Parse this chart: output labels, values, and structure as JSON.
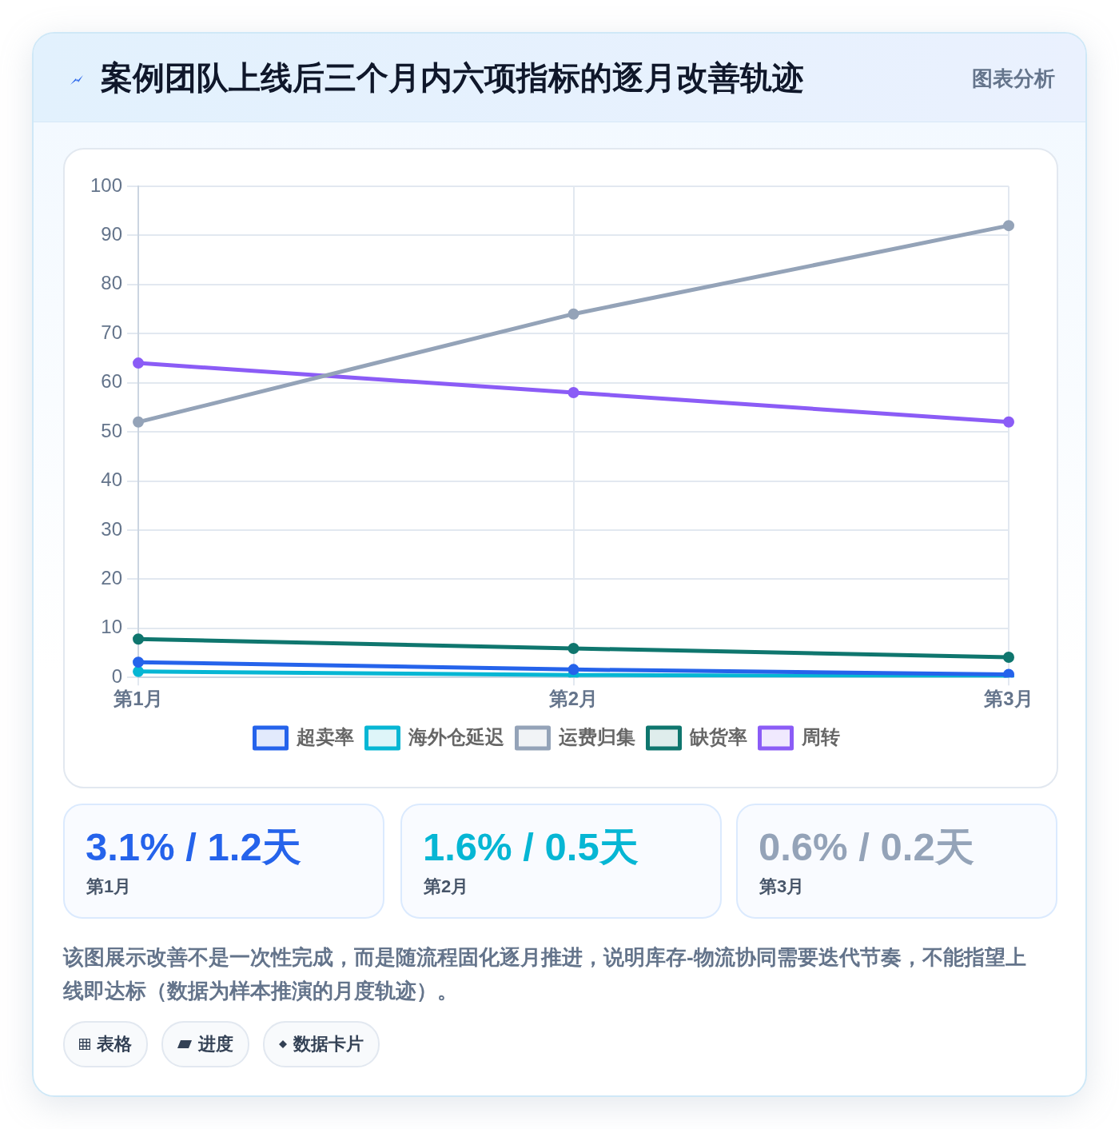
{
  "chart_data": {
    "type": "line",
    "title": "案例团队上线后三个月内六项指标的逐月改善轨迹",
    "categories": [
      "第1月",
      "第2月",
      "第3月"
    ],
    "series": [
      {
        "name": "超卖率",
        "color": "#2563eb",
        "values": [
          3.1,
          1.6,
          0.6
        ]
      },
      {
        "name": "海外仓延迟",
        "color": "#06b6d4",
        "values": [
          1.2,
          0.5,
          0.2
        ]
      },
      {
        "name": "运费归集",
        "color": "#94a3b8",
        "values": [
          52,
          74,
          92
        ]
      },
      {
        "name": "缺货率",
        "color": "#0f766e",
        "values": [
          7.8,
          5.9,
          4.1
        ]
      },
      {
        "name": "周转",
        "color": "#8b5cf6",
        "values": [
          64,
          58,
          52
        ]
      }
    ],
    "ylim": [
      0,
      100
    ],
    "yticks": [
      0,
      10,
      20,
      30,
      40,
      50,
      60,
      70,
      80,
      90,
      100
    ],
    "grid": true,
    "legend": "bottom",
    "marker": "circle",
    "annotations": [
      "图表分析",
      "3.1% / 1.2天",
      "第1月",
      "1.6% / 0.5天",
      "第2月",
      "0.6% / 0.2天",
      "第3月",
      "该图展示改善不是一次性完成，而是随流程固化逐月推进，说明库存-物流协同需要迭代节奏，不能指望上线即达标（数据为样本推演的月度轨迹）。",
      "表格",
      "进度",
      "数据卡片"
    ]
  }
}
